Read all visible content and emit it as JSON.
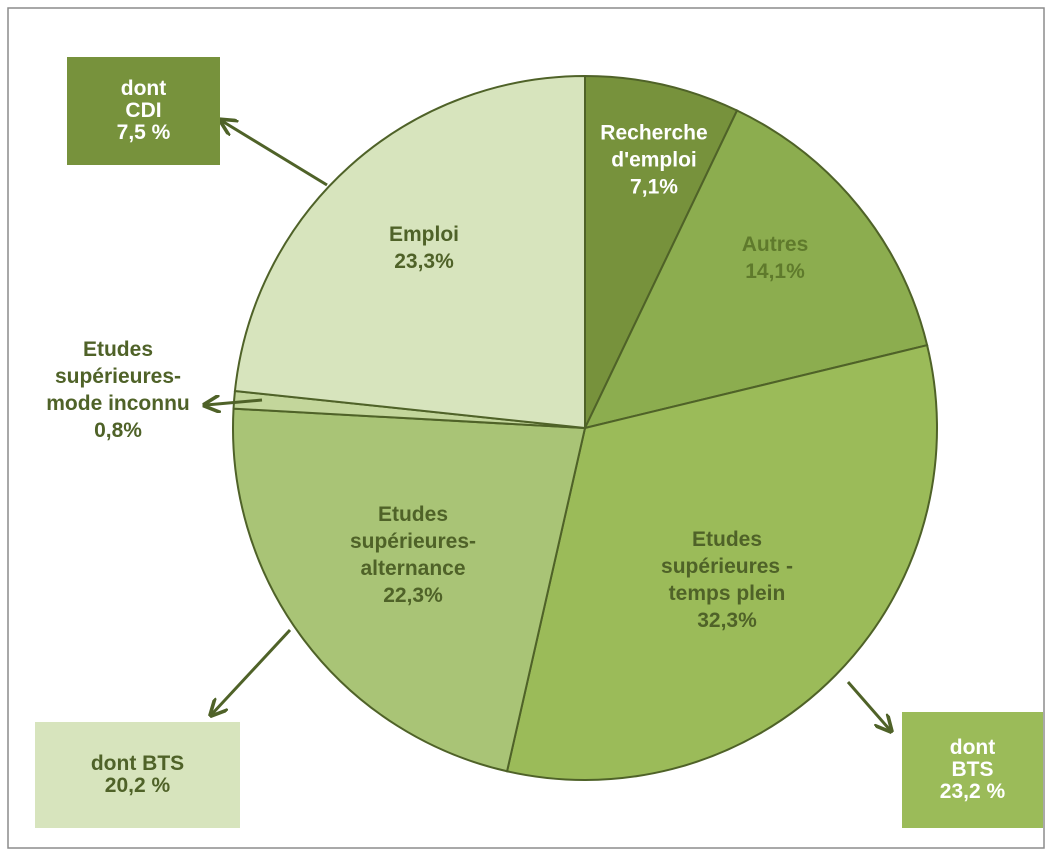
{
  "chart_data": {
    "type": "pie",
    "categories": [
      "Recherche\nd'emploi",
      "Autres",
      "Etudes\nsupérieures -\ntemps plein",
      "Etudes\nsupérieures-\nalternance",
      "Etudes\nsupérieures-\nmode inconnu",
      "Emploi"
    ],
    "values": [
      7.1,
      14.1,
      32.3,
      22.3,
      0.8,
      23.3
    ],
    "value_labels": [
      "7,1%",
      "14,1%",
      "32,3%",
      "22,3%",
      "0,8%",
      "23,3%"
    ],
    "colors": [
      "#77923c",
      "#8cad4f",
      "#9bbb59",
      "#a9c476",
      "#c3d69b",
      "#d7e4bd"
    ],
    "annotations": [
      "dont\nCDI\n7,5 %",
      "dont BTS\n20,2 %",
      "dont\nBTS\n23,2 %"
    ]
  }
}
